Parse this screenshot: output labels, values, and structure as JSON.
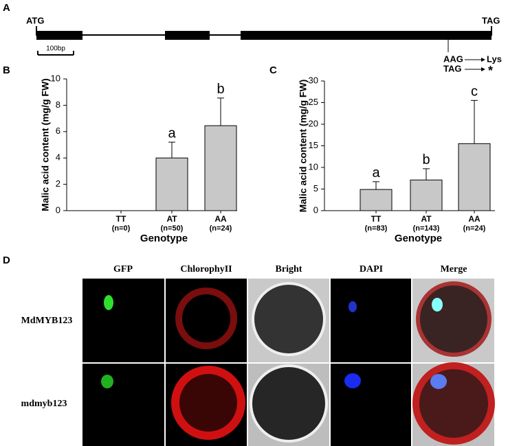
{
  "panel_a": {
    "label": "A",
    "start_codon": "ATG",
    "stop_codon": "TAG",
    "scale_bar": "100bp",
    "mutation": [
      {
        "codon": "AAG",
        "effect": "Lys"
      },
      {
        "codon": "TAG",
        "effect": "*"
      }
    ]
  },
  "chart_data": [
    {
      "type": "bar",
      "panel_label": "B",
      "ylabel": "Malic acid content (mg/g FW)",
      "xlabel": "Genotype",
      "categories": [
        "TT",
        "AT",
        "AA"
      ],
      "category_sublabels": [
        "(n=0)",
        "(n=50)",
        "(n=24)"
      ],
      "values": [
        0,
        4.0,
        6.45
      ],
      "errors": [
        0,
        1.2,
        2.1
      ],
      "significance_labels": [
        null,
        "a",
        "b"
      ],
      "color": "#c8c8c8",
      "ylim": [
        0,
        10
      ],
      "yticks": [
        0,
        2,
        4,
        6,
        8,
        10
      ]
    },
    {
      "type": "bar",
      "panel_label": "C",
      "ylabel": "Malic acid content (mg/g FW)",
      "xlabel": "Genotype",
      "categories": [
        "TT",
        "AT",
        "AA"
      ],
      "category_sublabels": [
        "(n=83)",
        "(n=143)",
        "(n=24)"
      ],
      "values": [
        4.9,
        7.1,
        15.5
      ],
      "errors": [
        1.8,
        2.6,
        10.0
      ],
      "significance_labels": [
        "a",
        "b",
        "c"
      ],
      "color": "#c8c8c8",
      "ylim": [
        0,
        30
      ],
      "yticks": [
        0,
        5,
        10,
        15,
        20,
        25,
        30
      ]
    }
  ],
  "panel_d": {
    "label": "D",
    "columns": [
      "GFP",
      "ChlorophyII",
      "Bright",
      "DAPI",
      "Merge"
    ],
    "rows": [
      "MdMYB123",
      "mdmyb123"
    ]
  }
}
